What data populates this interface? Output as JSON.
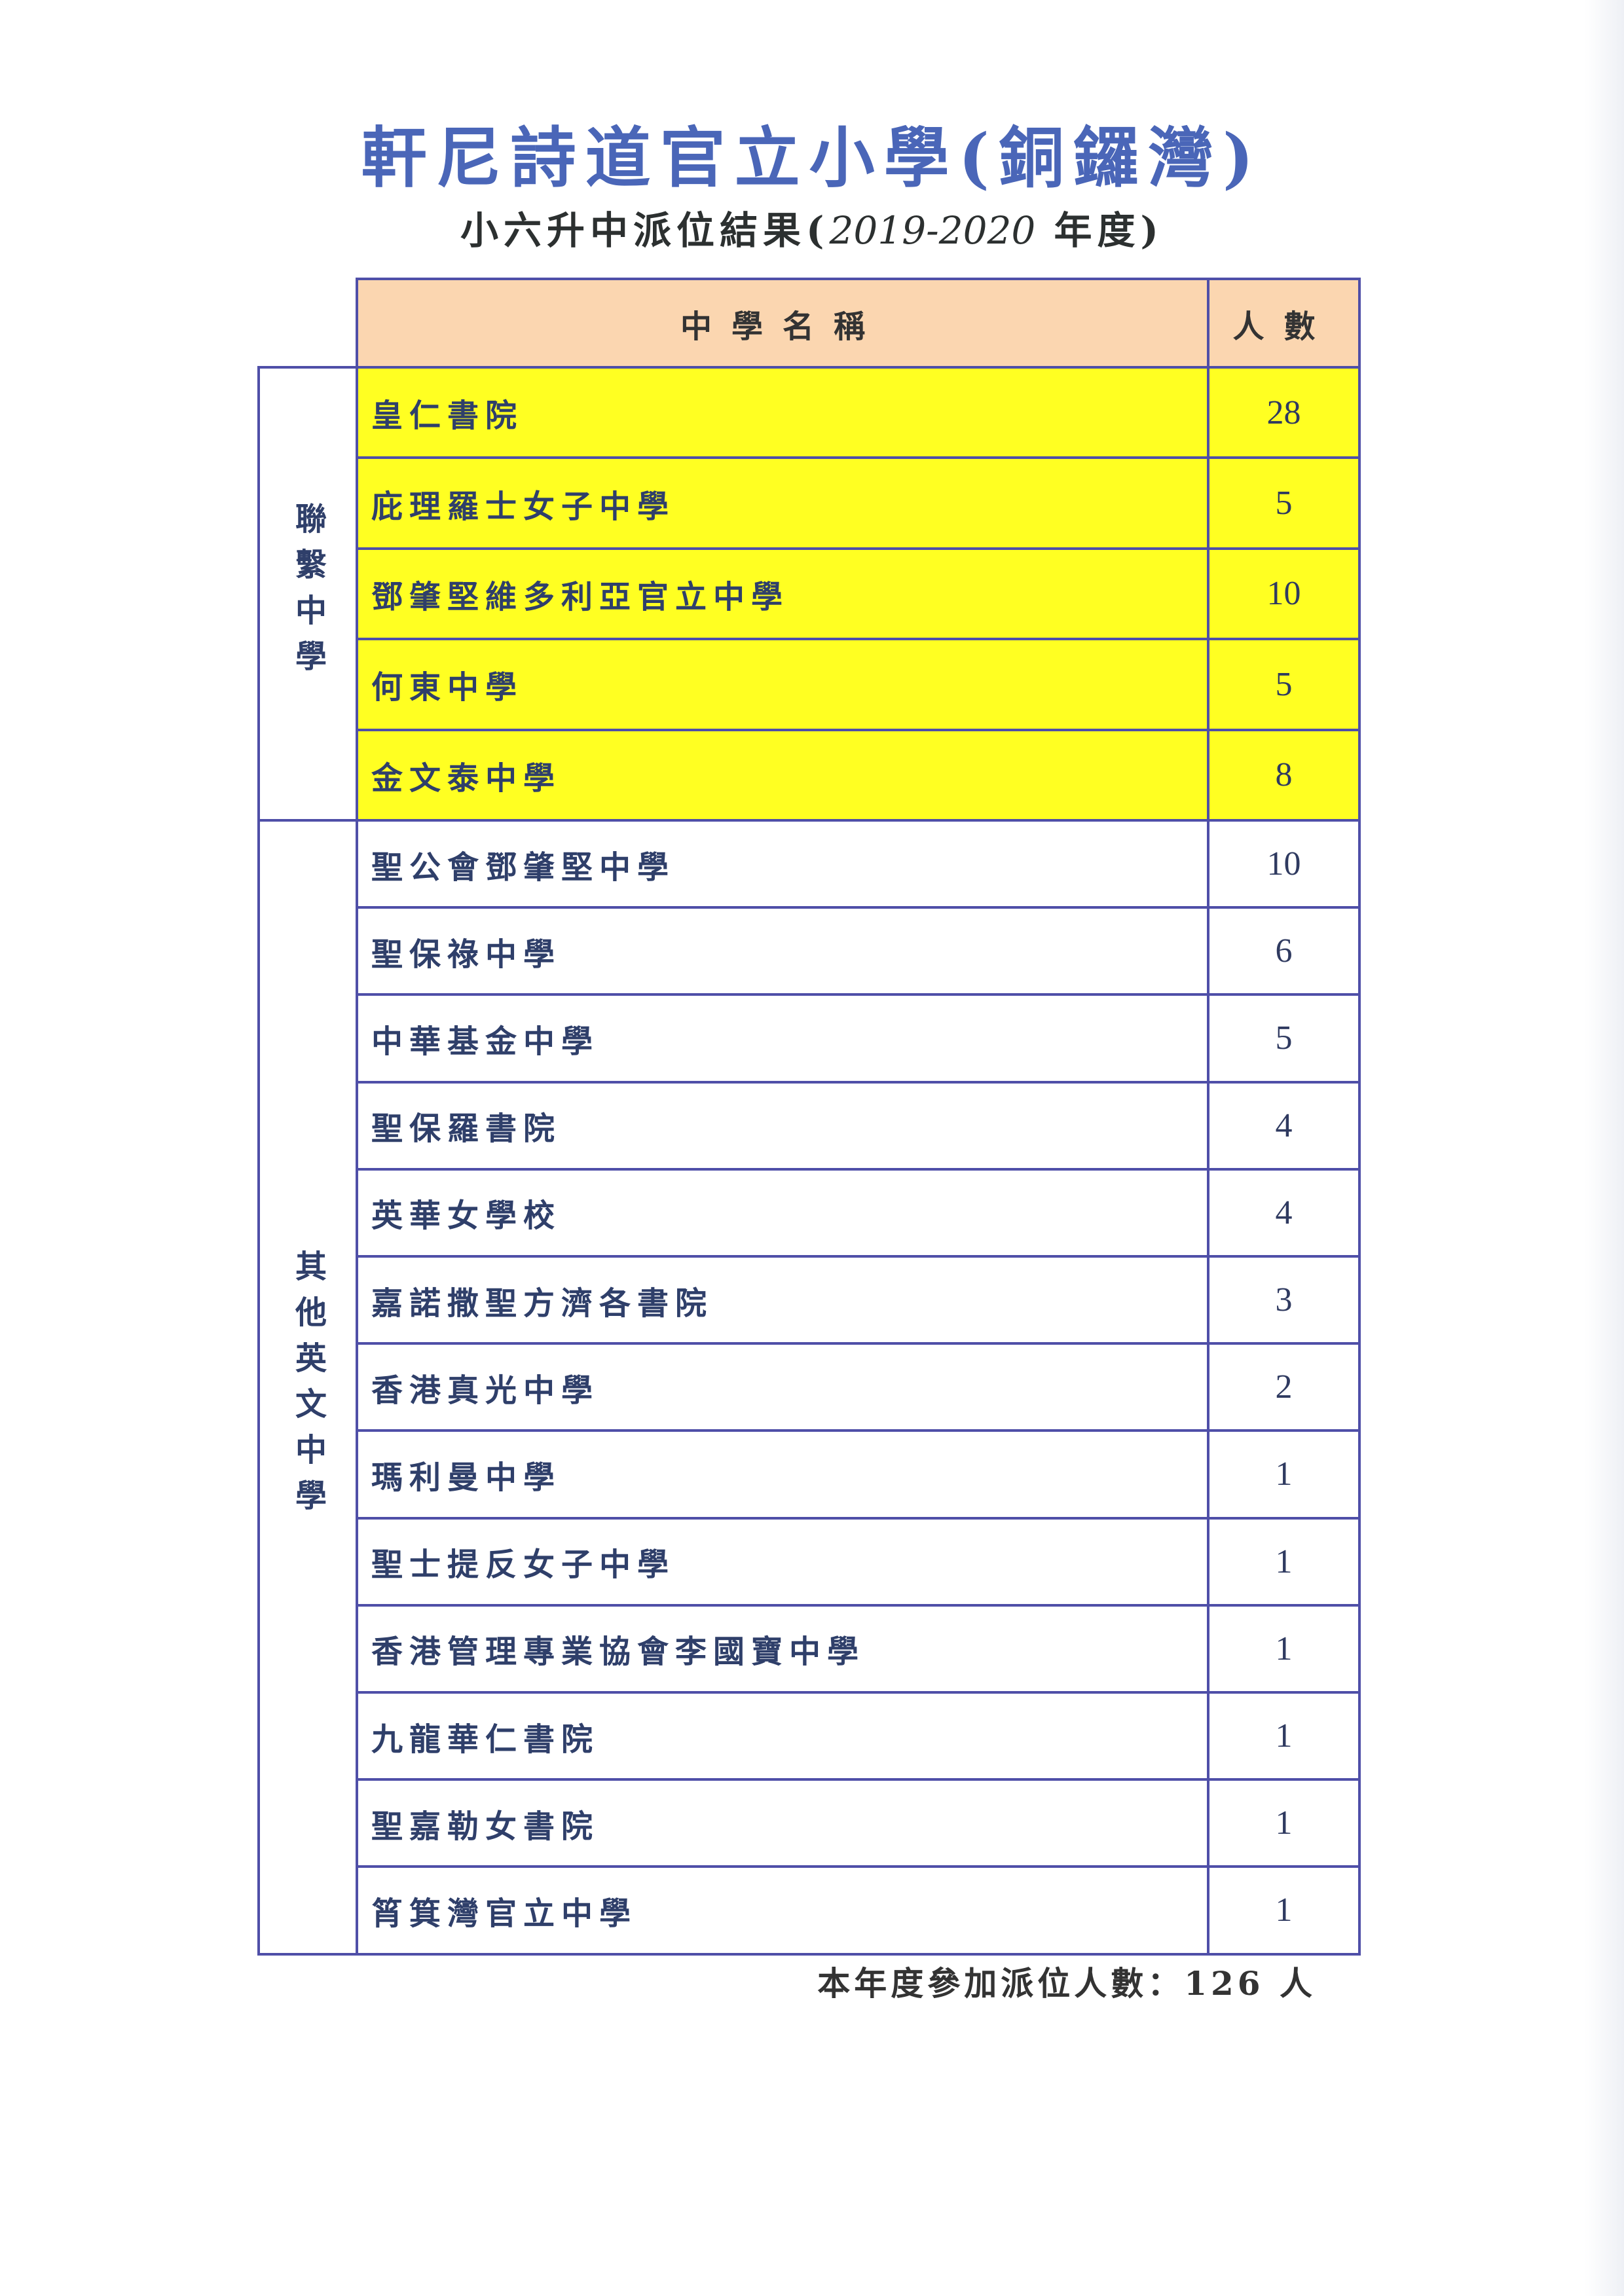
{
  "title": "軒尼詩道官立小學(銅鑼灣)",
  "subtitle": {
    "prefix": "小六升中派位結果(",
    "year": "2019-2020",
    "suffix": " 年度)"
  },
  "table": {
    "headers": {
      "school": "中學名稱",
      "count": "人數"
    },
    "groups": [
      {
        "label": "聯繫中學",
        "highlight": "#ffff22",
        "rows": [
          {
            "school": "皇仁書院",
            "count": "28"
          },
          {
            "school": "庇理羅士女子中學",
            "count": "5"
          },
          {
            "school": "鄧肇堅維多利亞官立中學",
            "count": "10"
          },
          {
            "school": "何東中學",
            "count": "5"
          },
          {
            "school": "金文泰中學",
            "count": "8"
          }
        ]
      },
      {
        "label": "其他英文中學",
        "rows": [
          {
            "school": "聖公會鄧肇堅中學",
            "count": "10"
          },
          {
            "school": "聖保祿中學",
            "count": "6"
          },
          {
            "school": "中華基金中學",
            "count": "5"
          },
          {
            "school": "聖保羅書院",
            "count": "4"
          },
          {
            "school": "英華女學校",
            "count": "4"
          },
          {
            "school": "嘉諾撒聖方濟各書院",
            "count": "3"
          },
          {
            "school": "香港真光中學",
            "count": "2"
          },
          {
            "school": "瑪利曼中學",
            "count": "1"
          },
          {
            "school": "聖士提反女子中學",
            "count": "1"
          },
          {
            "school": "香港管理專業協會李國寶中學",
            "count": "1"
          },
          {
            "school": "九龍華仁書院",
            "count": "1"
          },
          {
            "school": "聖嘉勒女書院",
            "count": "1"
          },
          {
            "school": "筲箕灣官立中學",
            "count": "1"
          }
        ]
      }
    ]
  },
  "footer": "本年度參加派位人數：126 人"
}
